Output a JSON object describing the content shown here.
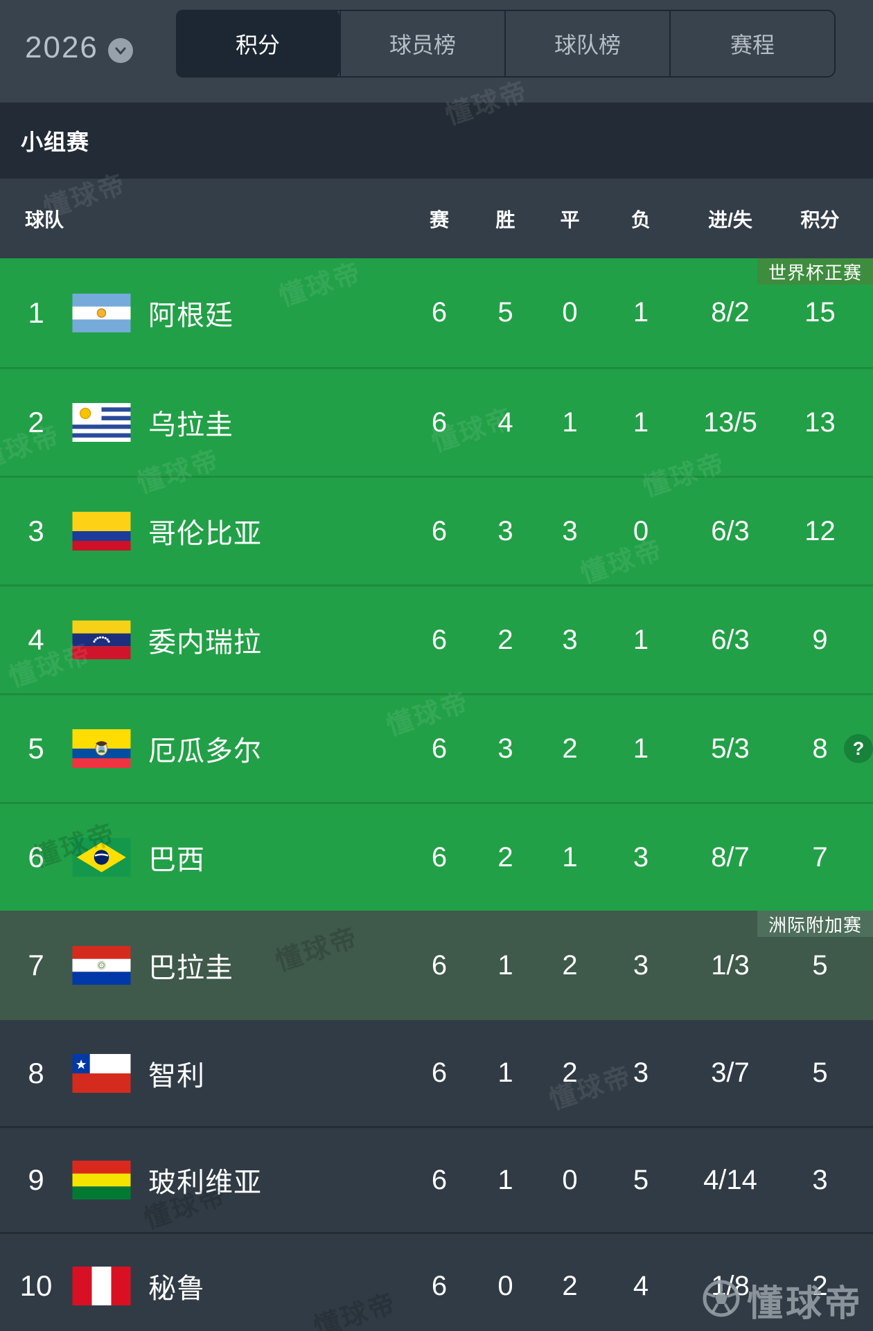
{
  "topbar": {
    "season": "2026",
    "tabs": [
      {
        "label": "积分",
        "active": true
      },
      {
        "label": "球员榜",
        "active": false
      },
      {
        "label": "球队榜",
        "active": false
      },
      {
        "label": "赛程",
        "active": false
      }
    ]
  },
  "section": {
    "title": "小组赛"
  },
  "table": {
    "headers": {
      "team": "球队",
      "played": "赛",
      "won": "胜",
      "drawn": "平",
      "lost": "负",
      "goals": "进/失",
      "points": "积分"
    }
  },
  "rows": [
    {
      "rank": "1",
      "team": "阿根廷",
      "flag": "argentina",
      "played": "6",
      "won": "5",
      "drawn": "0",
      "lost": "1",
      "goals": "8/2",
      "points": "15",
      "zone": "green",
      "badge": "世界杯正赛"
    },
    {
      "rank": "2",
      "team": "乌拉圭",
      "flag": "uruguay",
      "played": "6",
      "won": "4",
      "drawn": "1",
      "lost": "1",
      "goals": "13/5",
      "points": "13",
      "zone": "green"
    },
    {
      "rank": "3",
      "team": "哥伦比亚",
      "flag": "colombia",
      "played": "6",
      "won": "3",
      "drawn": "3",
      "lost": "0",
      "goals": "6/3",
      "points": "12",
      "zone": "green"
    },
    {
      "rank": "4",
      "team": "委内瑞拉",
      "flag": "venezuela",
      "played": "6",
      "won": "2",
      "drawn": "3",
      "lost": "1",
      "goals": "6/3",
      "points": "9",
      "zone": "green"
    },
    {
      "rank": "5",
      "team": "厄瓜多尔",
      "flag": "ecuador",
      "played": "6",
      "won": "3",
      "drawn": "2",
      "lost": "1",
      "goals": "5/3",
      "points": "8",
      "zone": "green",
      "help": true
    },
    {
      "rank": "6",
      "team": "巴西",
      "flag": "brazil",
      "played": "6",
      "won": "2",
      "drawn": "1",
      "lost": "3",
      "goals": "8/7",
      "points": "7",
      "zone": "green"
    },
    {
      "rank": "7",
      "team": "巴拉圭",
      "flag": "paraguay",
      "played": "6",
      "won": "1",
      "drawn": "2",
      "lost": "3",
      "goals": "1/3",
      "points": "5",
      "zone": "playoff",
      "badge": "洲际附加赛"
    },
    {
      "rank": "8",
      "team": "智利",
      "flag": "chile",
      "played": "6",
      "won": "1",
      "drawn": "2",
      "lost": "3",
      "goals": "3/7",
      "points": "5",
      "zone": "dark"
    },
    {
      "rank": "9",
      "team": "玻利维亚",
      "flag": "bolivia",
      "played": "6",
      "won": "1",
      "drawn": "0",
      "lost": "5",
      "goals": "4/14",
      "points": "3",
      "zone": "dark"
    },
    {
      "rank": "10",
      "team": "秘鲁",
      "flag": "peru",
      "played": "6",
      "won": "0",
      "drawn": "2",
      "lost": "4",
      "goals": "1/8",
      "points": "2",
      "zone": "dark"
    }
  ],
  "help_label": "?",
  "watermark": {
    "brand": "懂球帝"
  },
  "colors": {
    "green_row": "#22A047",
    "playoff_row": "#3F594B",
    "dark_row": "#313B45",
    "badge_green": "#3E8C3E",
    "badge_playoff": "#4E6F5B",
    "help_circle": "#17823A",
    "topbar": "#39434E",
    "active_tab": "#1D2733"
  }
}
